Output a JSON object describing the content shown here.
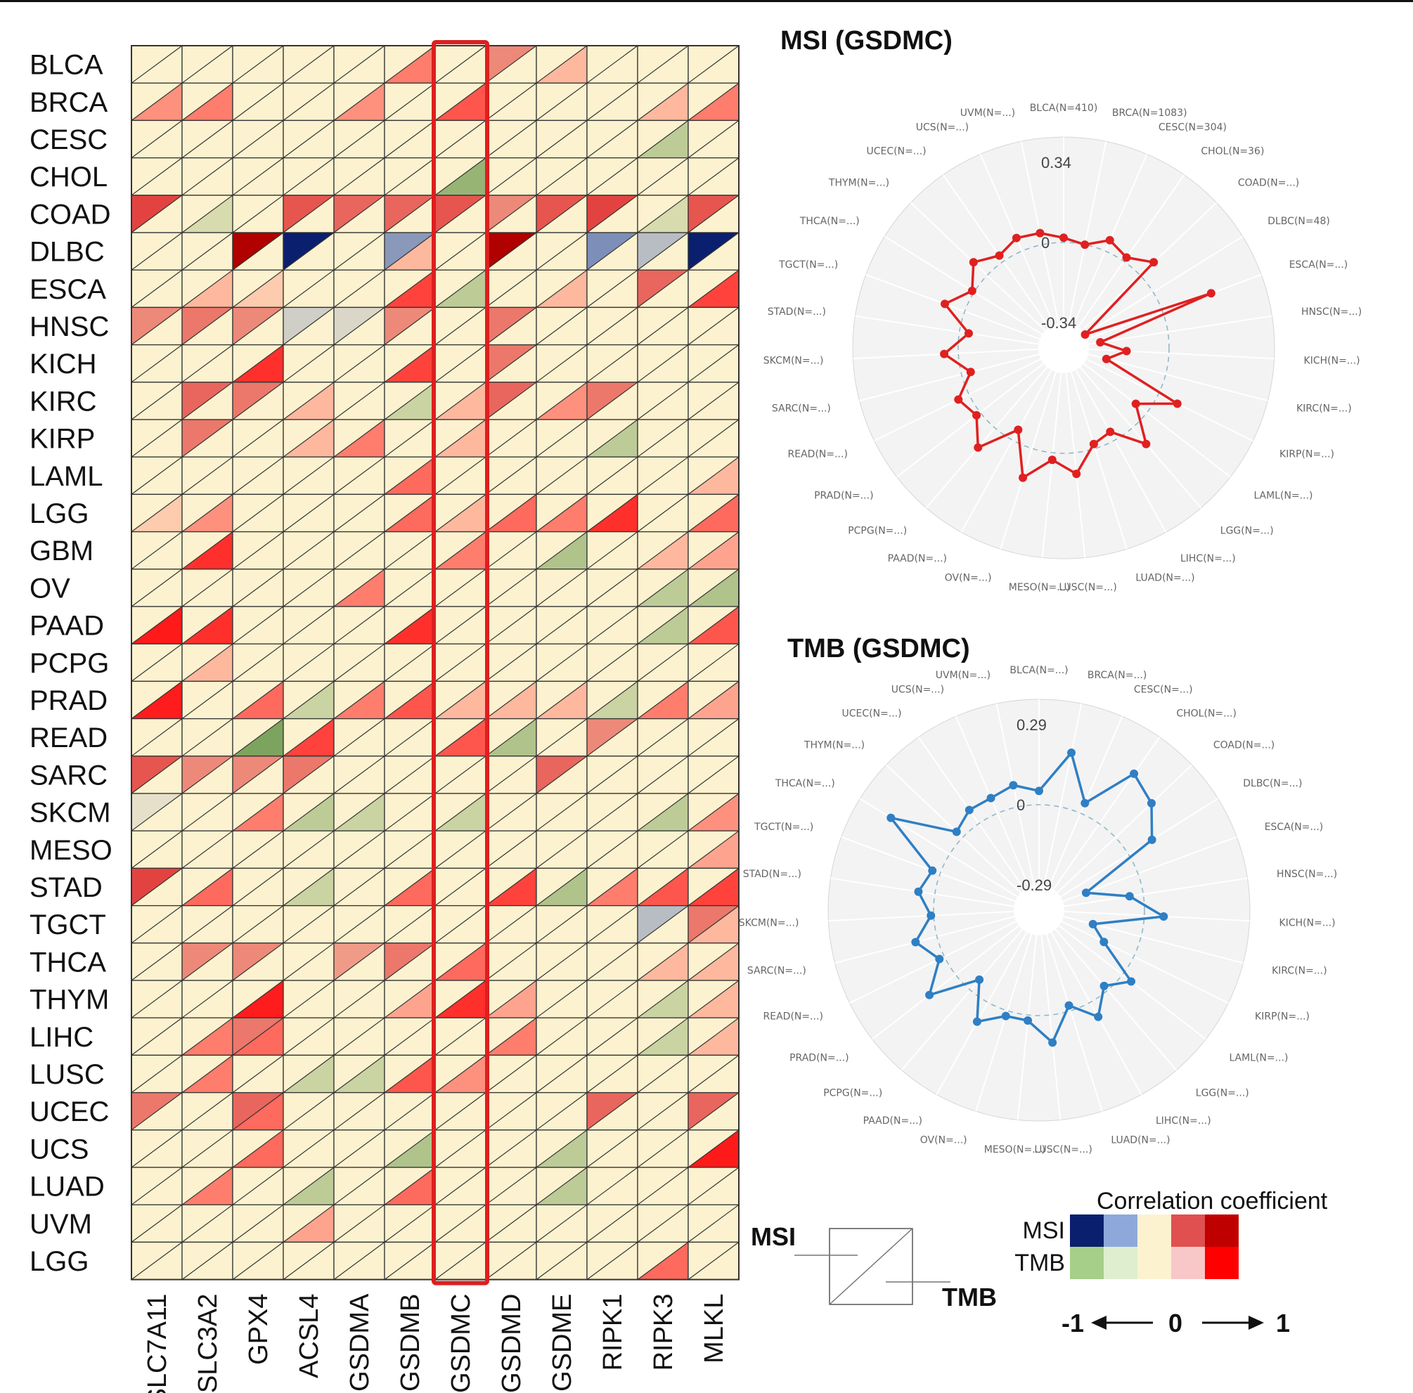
{
  "chart_data": [
    {
      "type": "heatmap",
      "cell_encoding": "each cell split by a diagonal: upper-left triangle = MSI correlation, lower-right triangle = TMB correlation",
      "highlight_column": "GSDMC",
      "rows": [
        "BLCA",
        "BRCA",
        "CESC",
        "CHOL",
        "COAD",
        "DLBC",
        "ESCA",
        "HNSC",
        "KICH",
        "KIRC",
        "KIRP",
        "LAML",
        "LGG",
        "GBM",
        "OV",
        "PAAD",
        "PCPG",
        "PRAD",
        "READ",
        "SARC",
        "SKCM",
        "MESO",
        "STAD",
        "TGCT",
        "THCA",
        "THYM",
        "LIHC",
        "LUSC",
        "UCEC",
        "UCS",
        "LUAD",
        "UVM",
        "LGG"
      ],
      "columns": [
        "SLC7A11",
        "SLC3A2",
        "GPX4",
        "ACSL4",
        "GSDMA",
        "GSDMB",
        "GSDMC",
        "GSDMD",
        "GSDME",
        "RIPK1",
        "RIPK3",
        "MLKL"
      ],
      "msi": [
        [
          0,
          0,
          0,
          0,
          0,
          0,
          0,
          0.3,
          0,
          0,
          0,
          0
        ],
        [
          0,
          0,
          0,
          0,
          0,
          0,
          0,
          0,
          0,
          0,
          0,
          0
        ],
        [
          0,
          0,
          0,
          0,
          0,
          0,
          0,
          0,
          0,
          0,
          0,
          0
        ],
        [
          0,
          0,
          0,
          0,
          0,
          0,
          0,
          0,
          0,
          0,
          0,
          0
        ],
        [
          0.5,
          0,
          0,
          0.45,
          0.4,
          0.4,
          0.45,
          0.3,
          0.45,
          0.5,
          0,
          0.45
        ],
        [
          0,
          0,
          0.9,
          -0.9,
          0,
          -0.5,
          0,
          0.9,
          0,
          -0.6,
          -0.3,
          -0.9
        ],
        [
          0,
          0,
          0,
          0,
          0,
          0,
          0,
          0,
          0,
          0,
          0.4,
          0
        ],
        [
          0.3,
          0.35,
          0.3,
          -0.2,
          -0.15,
          0.3,
          0,
          0.35,
          0,
          0,
          0,
          0
        ],
        [
          0,
          0,
          0,
          0,
          0,
          0,
          0,
          0.35,
          0,
          0,
          0,
          0
        ],
        [
          0,
          0.4,
          0.35,
          0,
          0,
          0,
          0,
          0.4,
          0,
          0.35,
          0,
          0
        ],
        [
          0,
          0.35,
          0,
          0,
          0,
          0,
          0,
          0,
          0,
          0,
          0,
          0
        ],
        [
          0,
          0,
          0,
          0,
          0,
          0,
          0,
          0,
          0,
          0,
          0,
          0
        ],
        [
          0,
          0,
          0,
          0,
          0,
          0,
          0,
          0,
          0,
          0,
          0,
          0
        ],
        [
          0,
          0,
          0,
          0,
          0,
          0,
          0,
          0,
          0,
          0,
          0,
          0
        ],
        [
          0,
          0,
          0,
          0,
          0,
          0,
          0,
          0,
          0,
          0,
          0,
          0
        ],
        [
          0,
          0,
          0,
          0,
          0,
          0,
          0,
          0,
          0,
          0,
          0,
          0
        ],
        [
          0,
          0,
          0,
          0,
          0,
          0,
          0,
          0,
          0,
          0,
          0,
          0
        ],
        [
          0,
          0,
          0,
          0,
          0,
          0,
          0,
          0,
          0,
          0,
          0,
          0
        ],
        [
          0,
          0,
          0,
          0,
          0,
          0,
          0,
          0,
          0,
          0.3,
          0,
          0
        ],
        [
          0.45,
          0.3,
          0.3,
          0.35,
          0,
          0,
          0,
          0,
          0.4,
          0,
          0,
          0
        ],
        [
          -0.1,
          0,
          0,
          0,
          0,
          0,
          0,
          0,
          0,
          0,
          0,
          0
        ],
        [
          0,
          0,
          0,
          0,
          0,
          0,
          0,
          0,
          0,
          0,
          0,
          0
        ],
        [
          0.5,
          0,
          0,
          0,
          0,
          0,
          0,
          0,
          0,
          0,
          0,
          0
        ],
        [
          0,
          0,
          0,
          0,
          0,
          0,
          0,
          0,
          0,
          0,
          -0.3,
          0.35
        ],
        [
          0,
          0.3,
          0.3,
          0,
          0.25,
          0.35,
          0,
          0,
          0,
          0,
          0,
          0
        ],
        [
          0,
          0,
          0,
          0,
          0,
          0,
          0,
          0,
          0,
          0,
          0,
          0
        ],
        [
          0,
          0,
          0.35,
          0,
          0,
          0,
          0,
          0,
          0,
          0,
          0,
          0
        ],
        [
          0,
          0,
          0,
          0,
          0,
          0,
          0,
          0,
          0,
          0,
          0,
          0
        ],
        [
          0.35,
          0,
          0.4,
          0,
          0,
          0,
          0,
          0,
          0,
          0.4,
          0,
          0.4
        ],
        [
          0,
          0,
          0,
          0,
          0,
          0,
          0,
          0,
          0,
          0,
          0,
          0
        ],
        [
          0,
          0,
          0,
          0,
          0,
          0,
          0,
          0,
          0,
          0,
          0,
          0
        ],
        [
          0,
          0,
          0,
          0,
          0,
          0,
          0,
          0,
          0,
          0,
          0,
          0
        ],
        [
          0,
          0,
          0,
          0,
          0,
          0,
          0,
          0,
          0,
          0,
          0,
          0
        ]
      ],
      "tmb": [
        [
          0,
          0,
          0,
          0,
          0,
          0.3,
          0,
          0,
          0.15,
          0,
          0,
          0
        ],
        [
          0.25,
          0.3,
          0,
          0,
          0.25,
          0,
          0.4,
          0,
          0,
          0,
          0.15,
          0.3
        ],
        [
          0,
          0,
          0,
          0,
          0,
          0,
          0,
          0,
          0,
          0,
          -0.25,
          0
        ],
        [
          0,
          0,
          0,
          0,
          0,
          0,
          -0.4,
          0,
          0,
          0,
          0,
          0
        ],
        [
          0,
          -0.15,
          0,
          0,
          0,
          0,
          0,
          0,
          0,
          0,
          -0.15,
          0
        ],
        [
          0,
          0,
          0,
          0,
          0,
          0.15,
          0,
          0,
          0,
          0,
          0,
          0
        ],
        [
          0,
          0.15,
          0.1,
          0,
          0,
          0.45,
          -0.25,
          0,
          0.15,
          0,
          0,
          0.45
        ],
        [
          0,
          0,
          0,
          0,
          0,
          0,
          0,
          0,
          0,
          0,
          0,
          0
        ],
        [
          0,
          0,
          0.5,
          0,
          0,
          0.45,
          0,
          0,
          0,
          0,
          0,
          0
        ],
        [
          0,
          0,
          0,
          0.15,
          0,
          -0.2,
          0.15,
          0,
          0.25,
          0,
          0,
          0
        ],
        [
          0,
          0,
          0,
          0.15,
          0.3,
          0,
          0.15,
          0,
          0,
          -0.25,
          0,
          0
        ],
        [
          0,
          0,
          0,
          0,
          0,
          0.35,
          0,
          0,
          0,
          0,
          0,
          0.15
        ],
        [
          0.1,
          0.25,
          0,
          0,
          0,
          0.35,
          0.15,
          0.35,
          0.3,
          0.5,
          0,
          0.35
        ],
        [
          0,
          0.5,
          0,
          0,
          0,
          0,
          0.3,
          0,
          -0.3,
          0,
          0.15,
          0.2
        ],
        [
          0,
          0,
          0,
          0,
          0.3,
          0,
          0,
          0,
          0,
          0,
          -0.25,
          -0.3
        ],
        [
          0.6,
          0.5,
          0,
          0,
          0,
          0.5,
          0,
          0,
          0,
          0,
          -0.25,
          0.4
        ],
        [
          0,
          0.15,
          0,
          0,
          0,
          0,
          0,
          0,
          0,
          0,
          0,
          0
        ],
        [
          0.55,
          0,
          0.35,
          -0.2,
          0.3,
          0.4,
          0.15,
          0.15,
          0.15,
          -0.2,
          0.3,
          0.2
        ],
        [
          0,
          0,
          -0.5,
          0.45,
          0,
          0,
          0.4,
          -0.3,
          0,
          0,
          0,
          0
        ],
        [
          0,
          0,
          0,
          0,
          0,
          0,
          0,
          0,
          0,
          0,
          0,
          0
        ],
        [
          0,
          0,
          0.3,
          -0.25,
          -0.2,
          0,
          -0.2,
          0,
          0,
          0,
          -0.25,
          0.25
        ],
        [
          0,
          0,
          0,
          0,
          0,
          0,
          0,
          0,
          0,
          0,
          0,
          0.2
        ],
        [
          0,
          0.35,
          0,
          -0.2,
          0,
          0.35,
          0,
          0.45,
          -0.3,
          0.3,
          0.4,
          0.45
        ],
        [
          0,
          0,
          0,
          0,
          0,
          0,
          0,
          0,
          0,
          0,
          0,
          0.15
        ],
        [
          0,
          0,
          0,
          0,
          0,
          0,
          0.35,
          0,
          0,
          0,
          0.15,
          0.15
        ],
        [
          0,
          0,
          0.55,
          0,
          0,
          0.2,
          0.5,
          0.2,
          0,
          0,
          -0.2,
          0.15
        ],
        [
          0,
          0.3,
          0.35,
          0,
          0,
          0,
          0,
          0.3,
          0,
          0,
          -0.2,
          0.15
        ],
        [
          0,
          0.3,
          0,
          -0.2,
          -0.2,
          0.4,
          0.25,
          0,
          0,
          0,
          0,
          0
        ],
        [
          0,
          0,
          0.35,
          0,
          0,
          0,
          0,
          0,
          0,
          0,
          0,
          0
        ],
        [
          0,
          0,
          0.35,
          0,
          0,
          -0.3,
          0,
          0,
          -0.25,
          0,
          0,
          0.6
        ],
        [
          0,
          0.3,
          0,
          -0.25,
          0,
          0.35,
          0,
          0,
          -0.25,
          0,
          0,
          0
        ],
        [
          0,
          0,
          0,
          0.2,
          0,
          0,
          0,
          0,
          0,
          0,
          0,
          0
        ],
        [
          0,
          0,
          0,
          0,
          0,
          0,
          0,
          0,
          0,
          0,
          0.35,
          0
        ]
      ],
      "legend": {
        "title": "Correlation coefficient",
        "msi_label": "MSI",
        "tmb_label": "TMB",
        "msi_colors": [
          "#0a1f6e",
          "#8fa8dc",
          "#fdf2cf",
          "#e05050",
          "#c00000"
        ],
        "tmb_colors": [
          "#a6cf8a",
          "#dfeecf",
          "#fdf2cf",
          "#f8c8c8",
          "#ff0000"
        ],
        "scale_min": "-1",
        "scale_mid": "0",
        "scale_max": "1",
        "key_msi": "MSI",
        "key_tmb": "TMB"
      }
    },
    {
      "type": "radar",
      "title": "MSI (GSDMC)",
      "color": "#e02020",
      "ticks": [
        "0.34",
        "0",
        "-0.34"
      ],
      "rmin": -0.34,
      "rmax": 0.34,
      "zero_dashed": true,
      "spoke_labels": [
        "BLCA(N=410)",
        "BRCA(N=1083)",
        "CESC(N=304)",
        "CHOL(N=36)",
        "COAD(N=...)",
        "DLBC(N=48)",
        "ESCA(N=...)",
        "HNSC(N=...)",
        "KICH(N=...)",
        "KIRC(N=...)",
        "KIRP(N=...)",
        "LAML(N=...)",
        "LGG(N=...)",
        "LIHC(N=...)",
        "LUAD(N=...)",
        "LUSC(N=...)",
        "MESO(N=...)",
        "OV(N=...)",
        "PAAD(N=...)",
        "PCPG(N=...)",
        "PRAD(N=...)",
        "READ(N=...)",
        "SARC(N=...)",
        "SKCM(N=...)",
        "STAD(N=...)",
        "TGCT(N=...)",
        "THCA(N=...)",
        "THYM(N=...)",
        "UCEC(N=...)",
        "UCS(N=...)",
        "UVM(N=...)"
      ],
      "values": [
        0.02,
        0.0,
        0.05,
        0.02,
        0.08,
        -0.34,
        0.22,
        -0.29,
        -0.18,
        -0.26,
        0.09,
        -0.06,
        0.09,
        -0.04,
        -0.02,
        0.09,
        0.03,
        0.13,
        -0.05,
        0.11,
        0.02,
        0.05,
        -0.04,
        0.06,
        -0.04,
        0.09,
        0.01,
        0.08,
        0.03,
        0.06,
        0.05
      ]
    },
    {
      "type": "radar",
      "title": "TMB (GSDMC)",
      "color": "#2f7fc4",
      "ticks": [
        "0.29",
        "0",
        "-0.29"
      ],
      "rmin": -0.29,
      "rmax": 0.29,
      "zero_dashed": true,
      "spoke_labels": [
        "BLCA(N=...)",
        "BRCA(N=...)",
        "CESC(N=...)",
        "CHOL(N=...)",
        "COAD(N=...)",
        "DLBC(N=...)",
        "ESCA(N=...)",
        "HNSC(N=...)",
        "KICH(N=...)",
        "KIRC(N=...)",
        "KIRP(N=...)",
        "LAML(N=...)",
        "LGG(N=...)",
        "LIHC(N=...)",
        "LUAD(N=...)",
        "LUSC(N=...)",
        "MESO(N=...)",
        "OV(N=...)",
        "PAAD(N=...)",
        "PCPG(N=...)",
        "PRAD(N=...)",
        "READ(N=...)",
        "SARC(N=...)",
        "SKCM(N=...)",
        "STAD(N=...)",
        "TGCT(N=...)",
        "THCA(N=...)",
        "THYM(N=...)",
        "UCEC(N=...)",
        "UCS(N=...)",
        "UVM(N=...)"
      ],
      "values": [
        0.05,
        0.2,
        0.04,
        0.22,
        0.18,
        0.1,
        -0.2,
        -0.05,
        0.07,
        -0.18,
        -0.12,
        0.04,
        -0.02,
        0.06,
        -0.02,
        0.1,
        0.02,
        0.02,
        0.08,
        -0.05,
        0.12,
        0.02,
        0.08,
        0.01,
        0.06,
        0.03,
        0.25,
        0.03,
        0.06,
        0.06,
        0.08
      ]
    }
  ]
}
